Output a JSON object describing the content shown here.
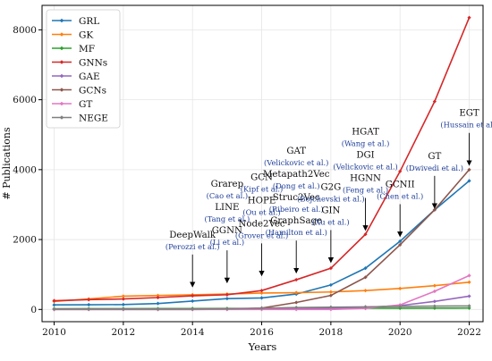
{
  "chart_data": {
    "type": "line",
    "xlabel": "Years",
    "ylabel": "# Publications",
    "xlim": [
      2009.65,
      2022.4
    ],
    "ylim": [
      -350,
      8700
    ],
    "x_ticks": [
      2010,
      2012,
      2014,
      2016,
      2018,
      2020,
      2022
    ],
    "y_ticks": [
      0,
      2000,
      4000,
      6000,
      8000
    ],
    "x": [
      2010,
      2011,
      2012,
      2013,
      2014,
      2015,
      2016,
      2017,
      2018,
      2019,
      2020,
      2021,
      2022
    ],
    "grid": true,
    "legend_position": "upper left",
    "series": [
      {
        "name": "GRL",
        "color": "#1f77b4",
        "marker": "diamond",
        "values": [
          130,
          135,
          140,
          170,
          240,
          310,
          330,
          440,
          700,
          1180,
          1950,
          2850,
          3680
        ]
      },
      {
        "name": "GK",
        "color": "#ff7f0e",
        "marker": "diamond",
        "values": [
          230,
          300,
          380,
          400,
          420,
          440,
          470,
          480,
          500,
          540,
          600,
          680,
          780
        ]
      },
      {
        "name": "MF",
        "color": "#2ca02c",
        "marker": "diamond",
        "values": [
          20,
          22,
          24,
          25,
          27,
          28,
          29,
          30,
          32,
          34,
          36,
          38,
          40
        ]
      },
      {
        "name": "GNNs",
        "color": "#d62728",
        "marker": "diamond",
        "values": [
          250,
          280,
          300,
          340,
          390,
          420,
          540,
          850,
          1180,
          2150,
          3950,
          5950,
          8350
        ]
      },
      {
        "name": "GAE",
        "color": "#9467bd",
        "marker": "diamond",
        "values": [
          5,
          6,
          7,
          8,
          9,
          10,
          12,
          16,
          25,
          60,
          110,
          230,
          380
        ]
      },
      {
        "name": "GCNs",
        "color": "#8c564b",
        "marker": "diamond",
        "values": [
          0,
          0,
          0,
          0,
          0,
          5,
          40,
          200,
          400,
          920,
          1850,
          2850,
          4000
        ]
      },
      {
        "name": "GT",
        "color": "#e377c2",
        "marker": "diamond",
        "values": [
          0,
          0,
          0,
          0,
          0,
          0,
          0,
          0,
          0,
          30,
          130,
          520,
          970
        ]
      },
      {
        "name": "NEGE",
        "color": "#7f7f7f",
        "marker": "diamond",
        "values": [
          10,
          10,
          10,
          10,
          12,
          20,
          35,
          55,
          65,
          75,
          85,
          95,
          100
        ]
      }
    ],
    "annotations": [
      {
        "x": 2014,
        "arrow_y": 600,
        "lines": [
          {
            "text": "DeepWalk",
            "cite": false
          },
          {
            "text": "(Perozzi et al.)",
            "cite": true
          }
        ]
      },
      {
        "x": 2015,
        "arrow_y": 720,
        "lines": [
          {
            "text": "Grarep",
            "cite": false
          },
          {
            "text": "(Cao et al.)",
            "cite": true
          },
          {
            "text": "LINE",
            "cite": false
          },
          {
            "text": "(Tang et al.)",
            "cite": true
          },
          {
            "text": "GGNN",
            "cite": false
          },
          {
            "text": "(Li et al.)",
            "cite": true
          }
        ]
      },
      {
        "x": 2016,
        "arrow_y": 920,
        "lines": [
          {
            "text": "GCN",
            "cite": false
          },
          {
            "text": "(Kipf et al.)",
            "cite": true
          },
          {
            "text": "HOPE",
            "cite": false
          },
          {
            "text": "(Ou et al.)",
            "cite": true
          },
          {
            "text": "Node2Vec",
            "cite": false
          },
          {
            "text": "(Grover et al.)",
            "cite": true
          }
        ]
      },
      {
        "x": 2017,
        "arrow_y": 1000,
        "lines": [
          {
            "text": "GAT",
            "cite": false
          },
          {
            "text": "(Velickovic et al.)",
            "cite": true
          },
          {
            "text": "Metapath2Vec",
            "cite": false
          },
          {
            "text": "(Dong et al.)",
            "cite": true
          },
          {
            "text": "Struc2Vec",
            "cite": false
          },
          {
            "text": "(Ribeiro et al.)",
            "cite": true
          },
          {
            "text": "GraphSage",
            "cite": false
          },
          {
            "text": "(Hamilton et al.)",
            "cite": true
          }
        ]
      },
      {
        "x": 2018,
        "arrow_y": 1300,
        "lines": [
          {
            "text": "G2G",
            "cite": false
          },
          {
            "text": "(Bojchevski et al.)",
            "cite": true
          },
          {
            "text": "GIN",
            "cite": false
          },
          {
            "text": "(Xu et al.)",
            "cite": true
          }
        ]
      },
      {
        "x": 2019,
        "arrow_y": 2220,
        "lines": [
          {
            "text": "HGAT",
            "cite": false
          },
          {
            "text": "(Wang et al.)",
            "cite": true
          },
          {
            "text": "DGI",
            "cite": false
          },
          {
            "text": "(Velickovic et al.)",
            "cite": true
          },
          {
            "text": "HGNN",
            "cite": false
          },
          {
            "text": "(Feng et al.)",
            "cite": true
          }
        ]
      },
      {
        "x": 2020,
        "arrow_y": 2040,
        "lines": [
          {
            "text": "GCNII",
            "cite": false
          },
          {
            "text": "(Chen et al.)",
            "cite": true
          }
        ]
      },
      {
        "x": 2021,
        "arrow_y": 2850,
        "lines": [
          {
            "text": "GT",
            "cite": false
          },
          {
            "text": "(Dwivedi et al.)",
            "cite": true
          }
        ]
      },
      {
        "x": 2022,
        "arrow_y": 4080,
        "lines": [
          {
            "text": "EGT",
            "cite": false
          },
          {
            "text": "(Hussain et al.)",
            "cite": true
          }
        ]
      }
    ],
    "colors": {
      "cite_text": "#1f3f99",
      "label_text": "#111111",
      "axis": "#000000",
      "grid": "#e6e6e6"
    }
  }
}
